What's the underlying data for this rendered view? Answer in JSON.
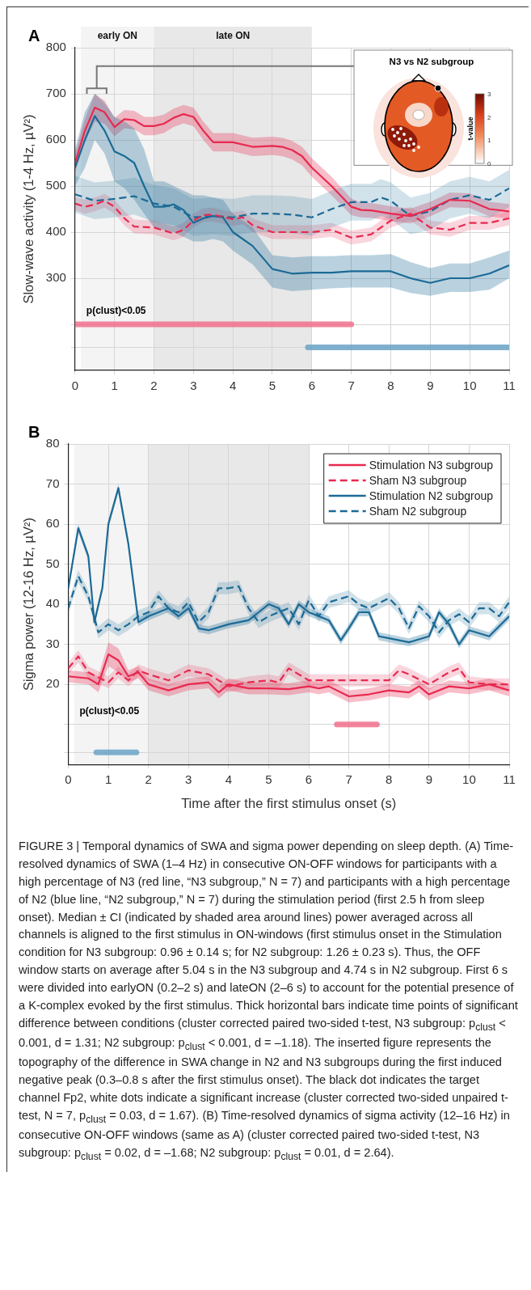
{
  "chart_data": [
    {
      "type": "line",
      "title": "A",
      "ylabel": "Slow-wave activity (1-4 Hz, µV²)",
      "xlim": [
        0,
        11
      ],
      "xticks": [
        0,
        1,
        2,
        3,
        4,
        5,
        6,
        7,
        8,
        9,
        10,
        11
      ],
      "ylim": [
        100,
        800
      ],
      "yticks": [
        {
          "value": 150,
          "label": null
        },
        {
          "value": 200,
          "label": null
        },
        300,
        400,
        500,
        600,
        700,
        800
      ],
      "grid": true,
      "marker": "none",
      "legend": false,
      "bands": [
        {
          "axis": "x",
          "from": 0.15,
          "to": 2,
          "label": "early ON",
          "color": "#f4f4f4"
        },
        {
          "axis": "x",
          "from": 2,
          "to": 6,
          "label": "late ON",
          "color": "#e8e8e8"
        }
      ],
      "annotations": [
        "p(clust)<0.05",
        "N3 vs N2 subgroup",
        "t-value",
        "0",
        "1",
        "2",
        "3"
      ],
      "series": [
        {
          "type": "line",
          "color": "#e8294f",
          "line_style": "solid",
          "x": [
            0,
            0.25,
            0.5,
            0.75,
            1,
            1.25,
            1.5,
            1.75,
            2,
            2.25,
            2.5,
            2.75,
            3,
            3.25,
            3.5,
            4,
            4.5,
            5,
            5.25,
            5.5,
            5.75,
            6,
            6.5,
            7,
            7.25,
            7.5,
            8,
            8.5,
            9,
            9.5,
            10,
            10.5,
            11
          ],
          "values": [
            550,
            620,
            670,
            660,
            628,
            645,
            643,
            630,
            630,
            635,
            648,
            656,
            650,
            620,
            595,
            595,
            585,
            587,
            585,
            578,
            565,
            540,
            500,
            455,
            448,
            447,
            440,
            435,
            450,
            470,
            468,
            450,
            445
          ],
          "lower": [
            530,
            595,
            640,
            635,
            608,
            625,
            623,
            610,
            610,
            615,
            628,
            636,
            630,
            600,
            575,
            575,
            565,
            567,
            565,
            558,
            545,
            520,
            480,
            437,
            432,
            431,
            424,
            419,
            434,
            454,
            452,
            434,
            429
          ],
          "upper": [
            570,
            645,
            700,
            685,
            648,
            665,
            663,
            650,
            650,
            655,
            668,
            676,
            670,
            640,
            615,
            615,
            605,
            607,
            605,
            598,
            585,
            560,
            520,
            473,
            464,
            463,
            456,
            451,
            466,
            486,
            484,
            466,
            461
          ]
        },
        {
          "type": "line",
          "color": "#e8294f",
          "line_style": "dashed",
          "x": [
            0,
            0.25,
            0.5,
            0.75,
            1,
            1.25,
            1.5,
            2,
            2.5,
            2.75,
            3,
            3.25,
            3.5,
            4,
            4.25,
            4.5,
            5,
            5.5,
            6,
            6.5,
            7,
            7.5,
            8,
            8.5,
            9,
            9.5,
            10,
            10.5,
            11
          ],
          "values": [
            462,
            455,
            460,
            468,
            455,
            430,
            412,
            410,
            397,
            405,
            425,
            437,
            438,
            428,
            432,
            415,
            400,
            400,
            400,
            405,
            388,
            395,
            425,
            440,
            410,
            405,
            420,
            420,
            430
          ],
          "lower": [
            447,
            440,
            445,
            453,
            440,
            415,
            397,
            395,
            382,
            390,
            410,
            422,
            423,
            413,
            417,
            400,
            385,
            385,
            385,
            390,
            373,
            380,
            410,
            425,
            395,
            390,
            405,
            405,
            415
          ],
          "upper": [
            477,
            470,
            475,
            483,
            470,
            445,
            427,
            425,
            412,
            420,
            440,
            452,
            453,
            443,
            447,
            430,
            415,
            415,
            415,
            420,
            403,
            410,
            440,
            455,
            425,
            420,
            435,
            435,
            445
          ]
        },
        {
          "type": "line",
          "color": "#1b6a96",
          "line_style": "solid",
          "x": [
            0,
            0.25,
            0.5,
            0.75,
            1,
            1.25,
            1.5,
            1.75,
            2,
            2.25,
            2.5,
            2.75,
            3,
            3.25,
            3.5,
            3.75,
            4,
            4.5,
            5,
            5.5,
            6,
            6.5,
            7,
            7.5,
            8,
            8.5,
            9,
            9.5,
            10,
            10.5,
            11
          ],
          "values": [
            540,
            600,
            652,
            620,
            575,
            565,
            550,
            500,
            455,
            455,
            460,
            448,
            420,
            430,
            435,
            432,
            400,
            370,
            320,
            310,
            312,
            312,
            315,
            315,
            315,
            300,
            290,
            300,
            300,
            310,
            328
          ],
          "lower": [
            500,
            540,
            600,
            570,
            510,
            495,
            470,
            440,
            410,
            405,
            400,
            390,
            380,
            380,
            385,
            380,
            360,
            330,
            280,
            272,
            275,
            278,
            280,
            280,
            280,
            268,
            262,
            270,
            270,
            275,
            300
          ],
          "upper": [
            580,
            660,
            700,
            680,
            650,
            640,
            625,
            580,
            510,
            510,
            500,
            490,
            480,
            480,
            475,
            470,
            440,
            410,
            350,
            345,
            348,
            348,
            350,
            350,
            352,
            335,
            322,
            332,
            332,
            345,
            360
          ]
        },
        {
          "type": "line",
          "color": "#1b6a96",
          "line_style": "dashed",
          "x": [
            0,
            0.5,
            1,
            1.5,
            2,
            2.5,
            3,
            3.5,
            4,
            4.5,
            5,
            5.5,
            6,
            6.5,
            7,
            7.5,
            7.75,
            8,
            8.5,
            9,
            9.5,
            10,
            10.5,
            11
          ],
          "values": [
            482,
            468,
            472,
            478,
            462,
            455,
            432,
            435,
            432,
            440,
            440,
            438,
            432,
            450,
            465,
            465,
            475,
            468,
            435,
            445,
            470,
            480,
            470,
            495
          ],
          "lower": [
            442,
            428,
            432,
            438,
            422,
            415,
            392,
            395,
            392,
            400,
            400,
            398,
            392,
            410,
            425,
            425,
            435,
            428,
            395,
            405,
            430,
            440,
            430,
            455
          ],
          "upper": [
            522,
            508,
            512,
            518,
            502,
            495,
            472,
            475,
            472,
            480,
            480,
            478,
            472,
            490,
            505,
            505,
            515,
            508,
            475,
            485,
            510,
            520,
            510,
            535
          ]
        },
        {
          "type": "line",
          "color": "#f0708c",
          "line_style": "solid",
          "x": [
            0,
            7
          ],
          "values": [
            200,
            200
          ]
        },
        {
          "type": "line",
          "color": "#6aa3c6",
          "line_style": "solid",
          "x": [
            5.9,
            11
          ],
          "values": [
            150,
            150
          ]
        }
      ]
    },
    {
      "type": "line",
      "title": "B",
      "xlabel": "Time after the first stimulus onset (s)",
      "ylabel": "Sigma power (12-16 Hz, µV²)",
      "xlim": [
        0,
        11
      ],
      "xticks": [
        0,
        1,
        2,
        3,
        4,
        5,
        6,
        7,
        8,
        9,
        10,
        11
      ],
      "ylim": [
        0,
        80
      ],
      "yticks": [
        {
          "value": 3,
          "label": null
        },
        {
          "value": 10,
          "label": null
        },
        20,
        30,
        40,
        50,
        60,
        70,
        80
      ],
      "grid": true,
      "marker": "none",
      "legend": "top right",
      "bands": [
        {
          "axis": "x",
          "from": 0.15,
          "to": 2,
          "color": "#f4f4f4"
        },
        {
          "axis": "x",
          "from": 2,
          "to": 6,
          "color": "#e8e8e8"
        }
      ],
      "annotations": [
        "p(clust)<0.05",
        "FIGURE 3 | Temporal dynamics of SWA and sigma power depending on sleep depth. (A) Time-resolved dynamics of SWA (1–4 Hz) in consecutive ON-OFF windows for participants with a high percentage of N3 (red line, “N3 subgroup,” N = 7) and participants with a high percentage of N2 (blue line, “N2 subgroup,” N = 7) during the stimulation period (first 2.5 h from sleep onset). Median ± CI (indicated by shaded area around lines) power averaged across all channels is aligned to the first stimulus in ON-windows (first stimulus onset in the Stimulation condition for N3 subgroup: 0.96 ± 0.14 s; for N2 subgroup: 1.26 ± 0.23 s). Thus, the OFF window starts on average after 5.04 s in the N3 subgroup and 4.74 s in N2 subgroup. First 6 s were divided into earlyON (0.2–2 s) and lateON (2–6 s) to account for the potential presence of a K-complex evoked by the first stimulus. Thick horizontal bars indicate time points of significant difference between conditions (cluster corrected paired two-sided t-test, N3 subgroup: p$_{clust}$ < 0.001, d = 1.31; N2 subgroup: p$_{clust}$ < 0.001, d = –1.18). The inserted figure represents the topography of the difference in SWA change in N2 and N3 subgroups during the first induced negative peak (0.3–0.8 s after the first stimulus onset). The black dot indicates the target channel Fp2, white dots indicate a significant increase (cluster corrected two-sided unpaired t-test, N = 7, p$_{clust}$ = 0.03, d = 1.67). (B) Time-resolved dynamics of sigma activity (12–16 Hz) in consecutive ON-OFF windows (same as A) (cluster corrected paired two-sided t-test, N3 subgroup: p$_{clust}$ = 0.02, d = –1.68; N2 subgroup: p$_{clust}$ = 0.01, d = 2.64)."
      ],
      "series": [
        {
          "type": "line",
          "name": "Stimulation N3 subgroup",
          "color": "#e8294f",
          "line_style": "solid",
          "x": [
            0,
            0.5,
            0.75,
            1,
            1.25,
            1.5,
            1.75,
            2,
            2.5,
            3,
            3.5,
            3.75,
            4,
            4.5,
            5,
            5.5,
            6,
            6.25,
            6.5,
            7,
            7.5,
            8,
            8.5,
            8.75,
            9,
            9.5,
            10,
            10.5,
            11
          ],
          "values": [
            22,
            21.5,
            20,
            27.5,
            26,
            22,
            23,
            20,
            18.5,
            20,
            20.5,
            18,
            20,
            19,
            19,
            18.8,
            19.5,
            19,
            19.5,
            17,
            17.5,
            18.5,
            18,
            19.5,
            17.5,
            19.5,
            19,
            20,
            18.5
          ],
          "lower": [
            20.5,
            20,
            18,
            24.5,
            23,
            20.5,
            21.5,
            18.5,
            17,
            18.5,
            19,
            16.5,
            18.5,
            17.5,
            17.5,
            17.3,
            18,
            17.5,
            18,
            15.5,
            16,
            17,
            16.5,
            18,
            16,
            18,
            17.5,
            18.5,
            17
          ],
          "upper": [
            23.5,
            23,
            22,
            30.5,
            29,
            23.5,
            24.5,
            21.5,
            20,
            21.5,
            22,
            19.5,
            21.5,
            20.5,
            20.5,
            20.3,
            21,
            20.5,
            21,
            18.5,
            19,
            20,
            19.5,
            21,
            19,
            21,
            20.5,
            21.5,
            20
          ]
        },
        {
          "type": "line",
          "name": "Sham N3 subgroup",
          "color": "#e8294f",
          "line_style": "dashed",
          "x": [
            0,
            0.25,
            0.5,
            1,
            1.25,
            1.5,
            1.75,
            2,
            2.5,
            3,
            3.5,
            4,
            4.5,
            5,
            5.25,
            5.5,
            6,
            6.5,
            7,
            7.5,
            8,
            8.25,
            8.5,
            9,
            9.5,
            9.75,
            10,
            10.5,
            11
          ],
          "values": [
            24,
            27,
            23,
            20.5,
            23,
            21,
            23.5,
            22.5,
            21,
            23.5,
            22.5,
            19.5,
            20.5,
            21,
            20.5,
            24,
            21,
            21,
            21,
            21,
            21,
            23.5,
            22.5,
            20,
            23,
            24,
            20.5,
            20,
            20
          ],
          "lower": [
            22.5,
            25.5,
            21.5,
            19,
            21.5,
            19.5,
            22,
            21,
            19.5,
            22,
            21,
            18,
            19,
            19.5,
            19,
            22.5,
            19.5,
            19.5,
            19.5,
            19.5,
            19.5,
            22,
            21,
            18.5,
            21.5,
            22.5,
            19,
            18.5,
            18.5
          ],
          "upper": [
            25.5,
            28.5,
            24.5,
            22,
            24.5,
            22.5,
            25,
            24,
            22.5,
            25,
            24,
            21,
            22,
            22.5,
            22,
            25.5,
            22.5,
            22.5,
            22.5,
            22.5,
            22.5,
            25,
            24,
            21.5,
            24.5,
            25.5,
            22,
            21.5,
            21.5
          ]
        },
        {
          "type": "line",
          "name": "Stimulation N2 subgroup",
          "color": "#1b6a96",
          "line_style": "solid",
          "x": [
            0,
            0.25,
            0.5,
            0.65,
            0.85,
            1,
            1.25,
            1.5,
            1.75,
            2,
            2.25,
            2.5,
            2.75,
            3,
            3.25,
            3.5,
            4,
            4.5,
            4.75,
            5,
            5.25,
            5.5,
            5.75,
            6,
            6.5,
            6.8,
            7,
            7.25,
            7.5,
            7.75,
            8,
            8.5,
            9,
            9.25,
            9.5,
            9.75,
            10,
            10.5,
            11
          ],
          "values": [
            44,
            59,
            52,
            35.5,
            44,
            60,
            69,
            55,
            35.5,
            37,
            38,
            39,
            37,
            39,
            34,
            33.5,
            35,
            36,
            38,
            40,
            39,
            35,
            40,
            38,
            36,
            31,
            34,
            38,
            38,
            32,
            31.5,
            30.5,
            32,
            38,
            35,
            30,
            33.5,
            32,
            37
          ],
          "lower": [
            43,
            58,
            51,
            34.5,
            43,
            59,
            68,
            54,
            34.5,
            36,
            37,
            38,
            36,
            38,
            33,
            32.5,
            34,
            35,
            37,
            39,
            38,
            34,
            39,
            37,
            35,
            30,
            33,
            37,
            37,
            31,
            30.5,
            29.5,
            31,
            37,
            34,
            29,
            32.5,
            31,
            36
          ],
          "upper": [
            45,
            60,
            53,
            36.5,
            45,
            61,
            70,
            56,
            36.5,
            38,
            39,
            40,
            38,
            40,
            35,
            34.5,
            36,
            37,
            39,
            41,
            40,
            36,
            41,
            39,
            37,
            32,
            35,
            39,
            39,
            33,
            32.5,
            31.5,
            33,
            39,
            36,
            31,
            34.5,
            33,
            38
          ]
        },
        {
          "type": "line",
          "name": "Sham N2 subgroup",
          "color": "#1b6a96",
          "line_style": "dashed",
          "x": [
            0,
            0.25,
            0.5,
            0.75,
            1,
            1.25,
            1.5,
            1.75,
            2,
            2.25,
            2.5,
            2.75,
            3,
            3.25,
            3.5,
            3.75,
            4,
            4.25,
            4.5,
            4.75,
            5,
            5.5,
            5.75,
            6,
            6.25,
            6.5,
            7,
            7.25,
            7.5,
            8,
            8.25,
            8.5,
            8.75,
            9,
            9.25,
            9.5,
            9.75,
            10,
            10.25,
            10.5,
            10.75,
            11
          ],
          "values": [
            39,
            47,
            42,
            33,
            35,
            33.5,
            35,
            37,
            38,
            42,
            39,
            38,
            40.5,
            35.5,
            38,
            44,
            44,
            44.5,
            39,
            35.5,
            37,
            39,
            35,
            41,
            37,
            40.5,
            42,
            40,
            39,
            41.5,
            39,
            34,
            39.5,
            37,
            33,
            36,
            37.5,
            35.5,
            39,
            39,
            37,
            40.5
          ],
          "lower": [
            37.5,
            45.5,
            40.5,
            31.5,
            33.5,
            32,
            33.5,
            35.5,
            36.5,
            40.5,
            37.5,
            36.5,
            39,
            34,
            36.5,
            42.5,
            42.5,
            43,
            37.5,
            34,
            35.5,
            37.5,
            33.5,
            39.5,
            35.5,
            39,
            40.5,
            38.5,
            37.5,
            40,
            37.5,
            32.5,
            38,
            35.5,
            31.5,
            34.5,
            36,
            34,
            37.5,
            37.5,
            35.5,
            39
          ],
          "upper": [
            40.5,
            48.5,
            43.5,
            34.5,
            36.5,
            35,
            36.5,
            38.5,
            39.5,
            43.5,
            40.5,
            39.5,
            42,
            37,
            39.5,
            45.5,
            45.5,
            46,
            40.5,
            37,
            38.5,
            40.5,
            36.5,
            42.5,
            38.5,
            42,
            43.5,
            41.5,
            40.5,
            43,
            40.5,
            35.5,
            41,
            38.5,
            34.5,
            37.5,
            39,
            37,
            40.5,
            40.5,
            38.5,
            42
          ]
        },
        {
          "type": "line",
          "color": "#f0708c",
          "line_style": "solid",
          "x": [
            6.7,
            7.7
          ],
          "values": [
            10,
            10
          ]
        },
        {
          "type": "line",
          "color": "#6aa3c6",
          "line_style": "solid",
          "x": [
            0.7,
            1.7
          ],
          "values": [
            3,
            3
          ]
        }
      ]
    }
  ]
}
